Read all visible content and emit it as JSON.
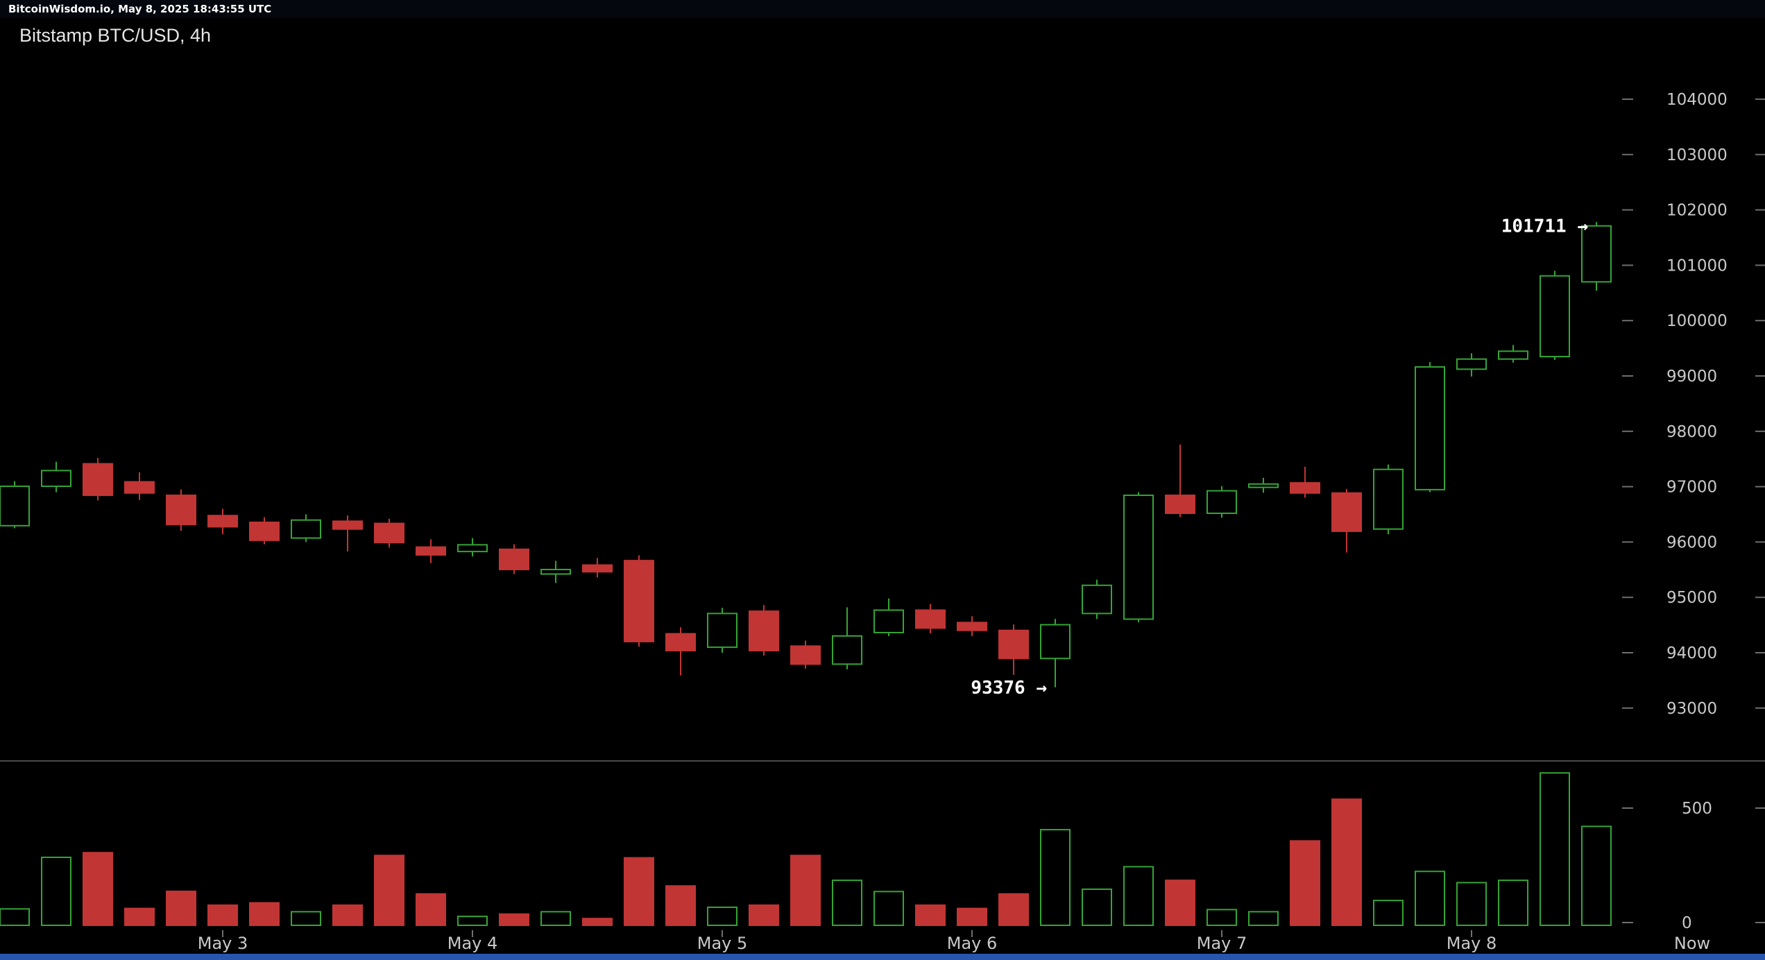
{
  "topbar": {
    "text": "BitcoinWisdom.io, May 8, 2025 18:43:55 UTC"
  },
  "header": {
    "title": "Bitstamp BTC/USD, 4h"
  },
  "colors": {
    "background": "#000000",
    "up": "#35a535",
    "down": "#c23535",
    "axis_text": "#c9c9c9",
    "tick": "#6e6e6e",
    "separator": "#4a4a4a",
    "annotation": "#ffffff",
    "bottom_strip": "#2856ae",
    "topbar_bg": "#04070d"
  },
  "chart_data": {
    "type": "candlestick",
    "title": "Bitstamp BTC/USD, 4h",
    "exchange": "Bitstamp",
    "pair": "BTC/USD",
    "interval": "4h",
    "current_price": 101711,
    "marked_low": 93376,
    "ylim": [
      92900,
      104600
    ],
    "volume_lim": [
      0,
      660
    ],
    "grid": "right-edge ticks only",
    "y_ticks": [
      104000,
      103000,
      102000,
      101000,
      100000,
      99000,
      98000,
      97000,
      96000,
      95000,
      94000,
      93000
    ],
    "volume_ticks": [
      500,
      0
    ],
    "x_labels": [
      {
        "label": "May 3",
        "index": 5,
        "tick": true
      },
      {
        "label": "May 4",
        "index": 11,
        "tick": true
      },
      {
        "label": "May 5",
        "index": 17,
        "tick": true
      },
      {
        "label": "May 6",
        "index": 23,
        "tick": true
      },
      {
        "label": "May 7",
        "index": 29,
        "tick": true
      },
      {
        "label": "May 8",
        "index": 35,
        "tick": true
      },
      {
        "label": "Now",
        "index": 40.3,
        "tick": false
      }
    ],
    "annotations": [
      {
        "text": "101711 →",
        "price": 101711,
        "candle_index": 38
      },
      {
        "text": "93376 →",
        "price": 93376,
        "candle_index": 25
      }
    ],
    "ohlcv_format": [
      "open",
      "high",
      "low",
      "close",
      "volume"
    ],
    "ohlcv": [
      [
        96295,
        97100,
        96250,
        97007,
        70
      ],
      [
        97007,
        97450,
        96900,
        97291,
        290
      ],
      [
        97414,
        97520,
        96750,
        96844,
        310
      ],
      [
        97088,
        97260,
        96760,
        96885,
        72
      ],
      [
        96844,
        96950,
        96200,
        96316,
        145
      ],
      [
        96478,
        96600,
        96140,
        96275,
        86
      ],
      [
        96356,
        96450,
        95960,
        96031,
        96
      ],
      [
        96072,
        96500,
        96000,
        96397,
        58
      ],
      [
        96376,
        96480,
        95830,
        96234,
        86
      ],
      [
        96336,
        96420,
        95900,
        95990,
        298
      ],
      [
        95909,
        96050,
        95620,
        95767,
        134
      ],
      [
        95828,
        96070,
        95740,
        95950,
        38
      ],
      [
        95869,
        95960,
        95420,
        95503,
        48
      ],
      [
        95422,
        95660,
        95260,
        95503,
        58
      ],
      [
        95584,
        95710,
        95360,
        95462,
        29
      ],
      [
        95665,
        95760,
        94110,
        94201,
        288
      ],
      [
        94343,
        94460,
        93590,
        94038,
        168
      ],
      [
        94099,
        94810,
        94000,
        94709,
        77
      ],
      [
        94750,
        94860,
        93950,
        94038,
        86
      ],
      [
        94120,
        94220,
        93710,
        93794,
        298
      ],
      [
        93794,
        94820,
        93700,
        94303,
        192
      ],
      [
        94364,
        94980,
        94300,
        94770,
        144
      ],
      [
        94770,
        94880,
        94350,
        94445,
        86
      ],
      [
        94546,
        94660,
        94300,
        94404,
        72
      ],
      [
        94404,
        94510,
        93600,
        93896,
        134
      ],
      [
        93896,
        94610,
        93376,
        94506,
        408
      ],
      [
        94709,
        95320,
        94610,
        95218,
        154
      ],
      [
        94607,
        96900,
        94550,
        96844,
        250
      ],
      [
        96844,
        97760,
        96450,
        96519,
        192
      ],
      [
        96519,
        97010,
        96440,
        96925,
        67
      ],
      [
        96987,
        97160,
        96890,
        97048,
        58
      ],
      [
        97069,
        97360,
        96800,
        96885,
        360
      ],
      [
        96885,
        96960,
        95810,
        96194,
        538
      ],
      [
        96234,
        97400,
        96140,
        97312,
        106
      ],
      [
        96946,
        99250,
        96900,
        99163,
        230
      ],
      [
        99122,
        99410,
        98990,
        99305,
        182
      ],
      [
        99305,
        99560,
        99240,
        99447,
        192
      ],
      [
        99350,
        100900,
        99290,
        100808,
        650
      ],
      [
        100700,
        101780,
        100540,
        101711,
        422
      ]
    ]
  }
}
